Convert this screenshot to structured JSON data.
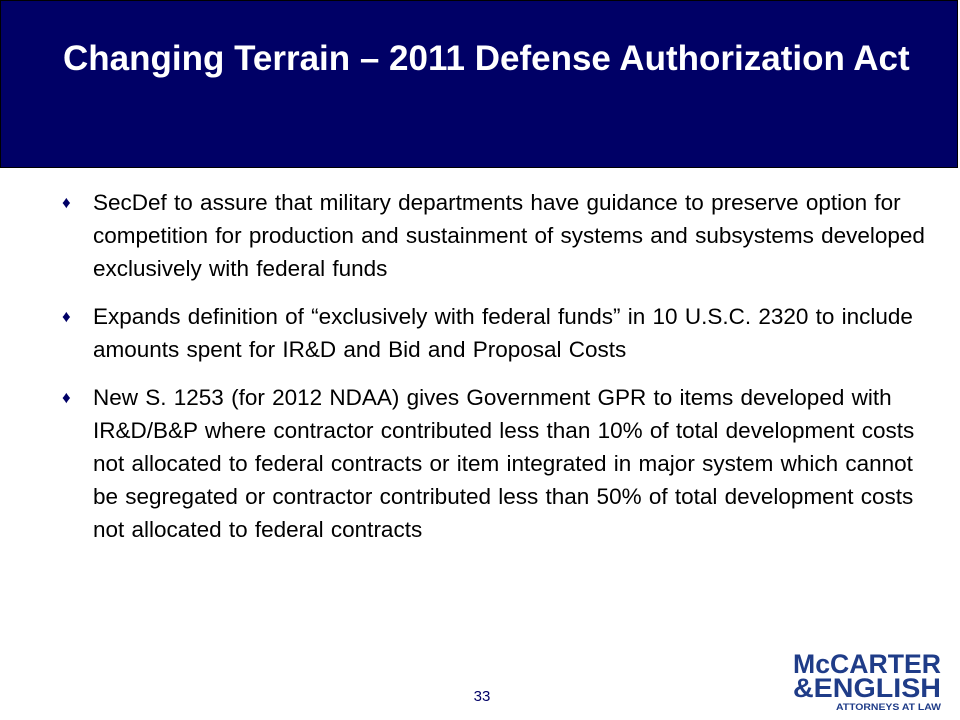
{
  "slide": {
    "title": "Changing Terrain – 2011 Defense Authorization Act",
    "bullet_glyph": "♦",
    "bullets": [
      "SecDef to assure that military departments have guidance to preserve option for competition for production and sustainment of systems and subsystems developed exclusively with federal funds",
      "Expands definition of “exclusively with federal funds” in 10 U.S.C. 2320 to include amounts spent for IR&D and Bid and Proposal Costs",
      "New S. 1253 (for 2012 NDAA) gives Government GPR to items developed with IR&D/B&P where contractor contributed less than 10% of total development costs not allocated to federal contracts or item integrated in major system which cannot be segregated or contractor contributed less than 50% of total development costs not allocated to federal contracts"
    ],
    "page_number": "33"
  },
  "logo": {
    "line1": "McCARTER",
    "line2": "&ENGLISH",
    "tagline": "ATTORNEYS AT LAW"
  },
  "colors": {
    "header_bg": "#000066",
    "title_text": "#ffffff",
    "body_text": "#000000",
    "logo_blue": "#1f3c88"
  }
}
